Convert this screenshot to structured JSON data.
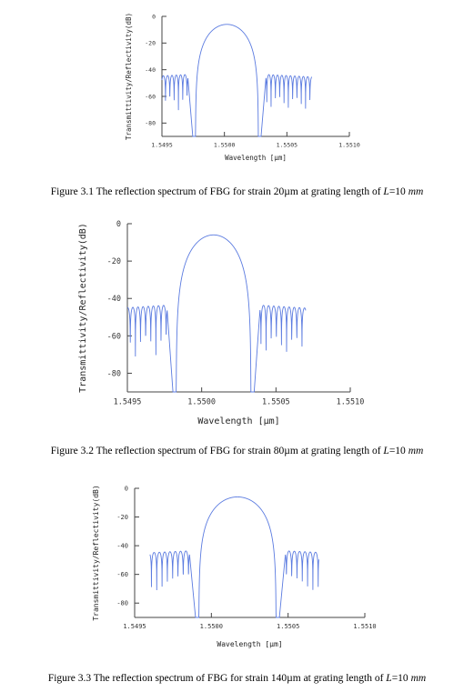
{
  "chart_data": [
    {
      "type": "line",
      "xlabel": "Wavelength [µm]",
      "ylabel": "Transmittivity/Reflectivity(dB)",
      "xlim": [
        1.5495,
        1.551
      ],
      "ylim": [
        -90,
        0
      ],
      "xticks": [
        "1.5495",
        "1.5500",
        "1.5505",
        "1.5510"
      ],
      "yticks": [
        "0",
        "-20",
        "-40",
        "-60",
        "-80"
      ],
      "peak_wavelength": 1.55002,
      "peak_db": -6,
      "x_start": 1.5495,
      "x_end": 1.5507,
      "line_color": "#5b7be0",
      "caption": {
        "before": "Figure 3.1 The reflection spectrum of FBG for strain 20µm at grating length of ",
        "var": "L",
        "equals": "=10 ",
        "unit": "mm"
      }
    },
    {
      "type": "line",
      "xlabel": "Wavelength [µm]",
      "ylabel": "Transmittivity/Reflectivity(dB)",
      "xlim": [
        1.5495,
        1.551
      ],
      "ylim": [
        -90,
        0
      ],
      "xticks": [
        "1.5495",
        "1.5500",
        "1.5505",
        "1.5510"
      ],
      "yticks": [
        "0",
        "-20",
        "-40",
        "-60",
        "-80"
      ],
      "peak_wavelength": 1.55008,
      "peak_db": -6,
      "x_start": 1.5495,
      "x_end": 1.5507,
      "line_color": "#5b7be0",
      "caption": {
        "before": "Figure 3.2 The reflection spectrum of FBG for strain 80µm at grating length of ",
        "var": "L",
        "equals": "=10 ",
        "unit": "mm"
      }
    },
    {
      "type": "line",
      "xlabel": "Wavelength [µm]",
      "ylabel": "Transmittivity/Reflectivity(dB)",
      "xlim": [
        1.5495,
        1.551
      ],
      "ylim": [
        -90,
        0
      ],
      "xticks": [
        "1.5495",
        "1.5500",
        "1.5505",
        "1.5510"
      ],
      "yticks": [
        "0",
        "-20",
        "-40",
        "-60",
        "-80"
      ],
      "peak_wavelength": 1.55017,
      "peak_db": -6,
      "x_start": 1.5496,
      "x_end": 1.5507,
      "line_color": "#5b7be0",
      "caption": {
        "before": "Figure 3.3 The reflection spectrum of FBG for strain 140µm at grating length of ",
        "var": "L",
        "equals": "=10 ",
        "unit": "mm"
      }
    }
  ]
}
